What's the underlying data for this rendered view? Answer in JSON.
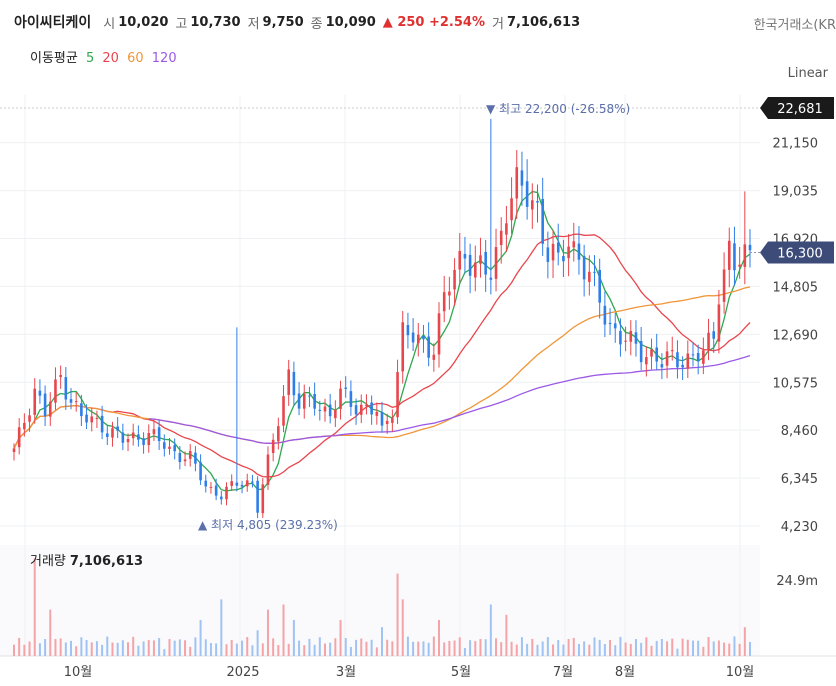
{
  "header": {
    "name": "아이씨티케이",
    "open_label": "시",
    "open": "10,020",
    "high_label": "고",
    "high": "10,730",
    "low_label": "저",
    "low": "9,750",
    "close_label": "종",
    "close": "10,090",
    "change": "▲ 250 +2.54%",
    "volume_label": "거",
    "volume": "7,106,613",
    "exchange": "한국거래소(KR"
  },
  "ma_legend": {
    "label": "이동평균",
    "items": [
      {
        "label": "5",
        "color": "#2fa84f"
      },
      {
        "label": "20",
        "color": "#e8464d"
      },
      {
        "label": "60",
        "color": "#f0963a"
      },
      {
        "label": "120",
        "color": "#9b59e6"
      }
    ]
  },
  "scale_mode": "Linear",
  "volume_panel": {
    "label": "거래량",
    "value": "7,106,613",
    "tick": "24.9m"
  },
  "colors": {
    "up": "#e8464d",
    "down": "#2f7ee8",
    "annotation": "#5b6fa8",
    "last_price_bg": "#3d4b78",
    "max_price_bg": "#1a1a1a"
  },
  "chart_data": {
    "type": "candlestick",
    "y_ticks": [
      "21,150",
      "19,035",
      "16,920",
      "14,805",
      "12,690",
      "10,575",
      "8,460",
      "6,345",
      "4,230"
    ],
    "y_range": [
      4230,
      22681
    ],
    "x_ticks": [
      "10월",
      "2025",
      "3월",
      "5월",
      "7월",
      "8월",
      "10월"
    ],
    "max_label": "22,681",
    "last_price_label": "16,300",
    "annotations": {
      "high": "▼ 최고 22,200 (-26.58%)",
      "low": "▲ 최저 4,805 (239.23%)"
    },
    "price_path": [
      [
        0,
        7500
      ],
      [
        4,
        10300
      ],
      [
        6,
        9200
      ],
      [
        9,
        10800
      ],
      [
        13,
        9000
      ],
      [
        17,
        8700
      ],
      [
        21,
        8000
      ],
      [
        26,
        8300
      ],
      [
        30,
        7600
      ],
      [
        34,
        7200
      ],
      [
        37,
        6000
      ],
      [
        40,
        5600
      ],
      [
        43,
        6100
      ],
      [
        46,
        6200
      ],
      [
        47,
        5000
      ],
      [
        49,
        7000
      ],
      [
        51,
        9000
      ],
      [
        53,
        11000
      ],
      [
        55,
        9500
      ],
      [
        58,
        9800
      ],
      [
        61,
        9100
      ],
      [
        63,
        10000
      ],
      [
        66,
        9600
      ],
      [
        68,
        9400
      ],
      [
        70,
        9200
      ],
      [
        71,
        8300
      ],
      [
        73,
        9500
      ],
      [
        75,
        12800
      ],
      [
        78,
        12300
      ],
      [
        81,
        12200
      ],
      [
        83,
        14200
      ],
      [
        85,
        15400
      ],
      [
        87,
        16500
      ],
      [
        89,
        15600
      ],
      [
        92,
        15300
      ],
      [
        93,
        16200
      ],
      [
        95,
        18500
      ],
      [
        97,
        19100
      ],
      [
        99,
        18800
      ],
      [
        101,
        18300
      ],
      [
        103,
        16300
      ],
      [
        105,
        15700
      ],
      [
        107,
        16900
      ],
      [
        109,
        16200
      ],
      [
        111,
        15100
      ],
      [
        113,
        14200
      ],
      [
        115,
        13100
      ],
      [
        117,
        12600
      ],
      [
        119,
        12200
      ],
      [
        121,
        12000
      ],
      [
        123,
        11800
      ],
      [
        125,
        11400
      ],
      [
        127,
        11600
      ],
      [
        129,
        11700
      ],
      [
        131,
        11600
      ],
      [
        133,
        11800
      ],
      [
        135,
        12700
      ],
      [
        136,
        14800
      ],
      [
        138,
        16300
      ],
      [
        139,
        15600
      ],
      [
        141,
        16100
      ],
      [
        142,
        16300
      ]
    ],
    "big_moves": {
      "43": [
        10100,
        13000
      ],
      "92": [
        16300,
        22200
      ],
      "125": [
        11600,
        10500
      ],
      "141": [
        16300,
        19000
      ]
    },
    "volume_spikes": {
      "4": 0.95,
      "7": 0.45,
      "36": 0.35,
      "40": 0.55,
      "47": 0.25,
      "49": 0.45,
      "52": 0.5,
      "54": 0.35,
      "63": 0.35,
      "71": 0.28,
      "74": 0.8,
      "75": 0.55,
      "82": 0.35,
      "92": 0.5,
      "95": 0.4,
      "141": 0.28
    }
  }
}
